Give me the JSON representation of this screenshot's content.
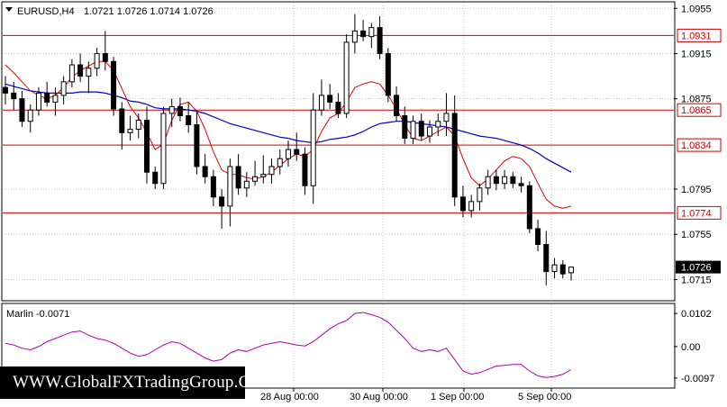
{
  "header": {
    "symbol": "EURUSD,H4",
    "ohlc": "1.0721 1.0726 1.0714 1.0726"
  },
  "indicator": {
    "label": "Marlin -0.0071",
    "ticks": [
      "0.0102",
      "0.00",
      "-0.0097"
    ],
    "line_color": "#b000b0"
  },
  "watermark": "WWW.GlobalFXTradingGroup.Com",
  "colors": {
    "level_line": "#d00000",
    "ma_fast": "#e00000",
    "ma_slow": "#0000cc",
    "grid": "#c8c8c8",
    "current_price_bg": "#000000"
  },
  "chart_data": {
    "type": "candlestick",
    "price_axis": {
      "ticks": [
        "1.0955",
        "1.0915",
        "1.0875",
        "1.0795",
        "1.0755",
        "1.0715"
      ],
      "range": [
        1.0697,
        1.096
      ]
    },
    "time_axis": {
      "labels": [
        "28 Aug 00:00",
        "30 Aug 00:00",
        "1 Sep 00:00",
        "5 Sep 00:00"
      ]
    },
    "levels": [
      {
        "value": 1.0931,
        "label": "1.0931"
      },
      {
        "value": 1.0865,
        "label": "1.0865"
      },
      {
        "value": 1.0834,
        "label": "1.0834"
      },
      {
        "value": 1.0774,
        "label": "1.0774"
      }
    ],
    "current_price": {
      "value": 1.0726,
      "label": "1.0726"
    },
    "candles": [
      [
        1.0885,
        1.0895,
        1.087,
        1.088
      ],
      [
        1.088,
        1.089,
        1.0865,
        1.0875
      ],
      [
        1.0875,
        1.0882,
        1.085,
        1.0855
      ],
      [
        1.0855,
        1.087,
        1.0845,
        1.0865
      ],
      [
        1.0865,
        1.0885,
        1.086,
        1.088
      ],
      [
        1.088,
        1.089,
        1.0868,
        1.0872
      ],
      [
        1.0872,
        1.0885,
        1.086,
        1.0878
      ],
      [
        1.0878,
        1.0895,
        1.087,
        1.089
      ],
      [
        1.089,
        1.091,
        1.0885,
        1.0905
      ],
      [
        1.0905,
        1.0915,
        1.089,
        1.0895
      ],
      [
        1.0895,
        1.0908,
        1.088,
        1.0902
      ],
      [
        1.0902,
        1.092,
        1.0895,
        1.0915
      ],
      [
        1.0915,
        1.0935,
        1.09,
        1.0908
      ],
      [
        1.0908,
        1.0912,
        1.086,
        1.0866
      ],
      [
        1.0866,
        1.0872,
        1.083,
        1.0845
      ],
      [
        1.0845,
        1.086,
        1.0838,
        1.0848
      ],
      [
        1.0848,
        1.0862,
        1.084,
        1.0856
      ],
      [
        1.0856,
        1.0868,
        1.08,
        1.081
      ],
      [
        1.081,
        1.0815,
        1.0795,
        1.08
      ],
      [
        1.08,
        1.0868,
        1.0795,
        1.0862
      ],
      [
        1.0862,
        1.0875,
        1.085,
        1.0868
      ],
      [
        1.0868,
        1.0876,
        1.0855,
        1.086
      ],
      [
        1.086,
        1.0872,
        1.0845,
        1.0852
      ],
      [
        1.0852,
        1.0864,
        1.0808,
        1.0815
      ],
      [
        1.0815,
        1.0826,
        1.08,
        1.0806
      ],
      [
        1.0806,
        1.0812,
        1.078,
        1.0788
      ],
      [
        1.0788,
        1.0795,
        1.076,
        1.078
      ],
      [
        1.078,
        1.0822,
        1.0762,
        1.0815
      ],
      [
        1.0815,
        1.0826,
        1.079,
        1.0796
      ],
      [
        1.0796,
        1.081,
        1.0788,
        1.0802
      ],
      [
        1.0802,
        1.082,
        1.0798,
        1.0806
      ],
      [
        1.0806,
        1.0825,
        1.08,
        1.0808
      ],
      [
        1.0808,
        1.0822,
        1.08,
        1.0815
      ],
      [
        1.0815,
        1.083,
        1.0808,
        1.0822
      ],
      [
        1.0822,
        1.0838,
        1.0815,
        1.083
      ],
      [
        1.083,
        1.0845,
        1.082,
        1.0826
      ],
      [
        1.0826,
        1.0832,
        1.079,
        1.0798
      ],
      [
        1.0798,
        1.088,
        1.0782,
        1.0865
      ],
      [
        1.0865,
        1.0892,
        1.086,
        1.0878
      ],
      [
        1.0878,
        1.0888,
        1.0866,
        1.0872
      ],
      [
        1.0872,
        1.088,
        1.0858,
        1.0862
      ],
      [
        1.0862,
        1.0932,
        1.0858,
        1.0925
      ],
      [
        1.0925,
        1.095,
        1.0915,
        1.0935
      ],
      [
        1.0935,
        1.0945,
        1.0926,
        1.093
      ],
      [
        1.093,
        1.0942,
        1.092,
        1.0938
      ],
      [
        1.0938,
        1.0948,
        1.091,
        1.0915
      ],
      [
        1.0915,
        1.092,
        1.0872,
        1.0878
      ],
      [
        1.0878,
        1.0886,
        1.0855,
        1.086
      ],
      [
        1.086,
        1.0868,
        1.0835,
        1.084
      ],
      [
        1.084,
        1.086,
        1.0835,
        1.0855
      ],
      [
        1.0855,
        1.0862,
        1.0838,
        1.0842
      ],
      [
        1.0842,
        1.0856,
        1.0836,
        1.085
      ],
      [
        1.085,
        1.0862,
        1.0842,
        1.0855
      ],
      [
        1.0855,
        1.088,
        1.0842,
        1.0862
      ],
      [
        1.0862,
        1.0878,
        1.078,
        1.0788
      ],
      [
        1.0788,
        1.0798,
        1.077,
        1.0776
      ],
      [
        1.0776,
        1.079,
        1.077,
        1.0784
      ],
      [
        1.0784,
        1.08,
        1.0776,
        1.0796
      ],
      [
        1.0796,
        1.0812,
        1.079,
        1.0806
      ],
      [
        1.0806,
        1.0812,
        1.0794,
        1.08
      ],
      [
        1.08,
        1.0812,
        1.0795,
        1.0806
      ],
      [
        1.0806,
        1.081,
        1.0796,
        1.08
      ],
      [
        1.08,
        1.0806,
        1.0792,
        1.0798
      ],
      [
        1.0798,
        1.0802,
        1.0756,
        1.076
      ],
      [
        1.076,
        1.0768,
        1.074,
        1.0746
      ],
      [
        1.0746,
        1.0758,
        1.071,
        1.0722
      ],
      [
        1.0722,
        1.0734,
        1.0716,
        1.0728
      ],
      [
        1.0728,
        1.0732,
        1.0716,
        1.072
      ],
      [
        1.0721,
        1.0726,
        1.0714,
        1.0726
      ]
    ],
    "ma_fast": [
      1.0905,
      1.0898,
      1.089,
      1.0882,
      1.0878,
      1.0875,
      1.0878,
      1.0885,
      1.0894,
      1.09,
      1.0904,
      1.0908,
      1.0908,
      1.09,
      1.0884,
      1.0868,
      1.0858,
      1.0845,
      1.083,
      1.0835,
      1.0856,
      1.087,
      1.0872,
      1.0864,
      1.0848,
      1.0828,
      1.0812,
      1.0808,
      1.0808,
      1.0805,
      1.0804,
      1.0806,
      1.081,
      1.0816,
      1.0822,
      1.0826,
      1.0824,
      1.083,
      1.0846,
      1.0858,
      1.0862,
      1.0872,
      1.0885,
      1.0888,
      1.089,
      1.0888,
      1.0878,
      1.0866,
      1.0852,
      1.084,
      1.0838,
      1.0842,
      1.0846,
      1.085,
      1.0842,
      1.0822,
      1.0805,
      1.0798,
      1.0804,
      1.0812,
      1.082,
      1.0824,
      1.0822,
      1.0815,
      1.08,
      1.0786,
      1.078,
      1.0778,
      1.078
    ],
    "ma_slow": [
      1.0888,
      1.0886,
      1.0884,
      1.0882,
      1.0881,
      1.088,
      1.088,
      1.088,
      1.088,
      1.0881,
      1.0881,
      1.0881,
      1.088,
      1.0878,
      1.0876,
      1.0873,
      1.0872,
      1.087,
      1.0867,
      1.0866,
      1.0866,
      1.0866,
      1.0865,
      1.0864,
      1.0862,
      1.0859,
      1.0856,
      1.0853,
      1.0851,
      1.0849,
      1.0847,
      1.0845,
      1.0843,
      1.0841,
      1.084,
      1.0838,
      1.0837,
      1.0836,
      1.0837,
      1.0839,
      1.084,
      1.0841,
      1.0843,
      1.0846,
      1.085,
      1.0853,
      1.0854,
      1.0855,
      1.0855,
      1.0854,
      1.0853,
      1.0852,
      1.0851,
      1.085,
      1.0848,
      1.0846,
      1.0844,
      1.0842,
      1.0841,
      1.084,
      1.0838,
      1.0836,
      1.0834,
      1.0831,
      1.0827,
      1.0822,
      1.0818,
      1.0814,
      1.081
    ],
    "marlin": {
      "range": [
        -0.0125,
        0.013
      ],
      "values": [
        0.001,
        0.0005,
        -0.0005,
        -0.001,
        0.0,
        0.0015,
        0.0025,
        0.0035,
        0.0045,
        0.0048,
        0.0035,
        0.0025,
        0.002,
        0.001,
        -0.0005,
        -0.002,
        -0.003,
        -0.0025,
        -0.001,
        0.0005,
        0.0015,
        0.001,
        -0.0005,
        -0.002,
        -0.0035,
        -0.0045,
        -0.004,
        -0.002,
        -0.001,
        -0.0015,
        -0.0005,
        0.0005,
        0.001,
        0.0015,
        0.001,
        0.0005,
        0.0002,
        0.0015,
        0.0035,
        0.0055,
        0.007,
        0.008,
        0.0102,
        0.0105,
        0.0098,
        0.009,
        0.0075,
        0.005,
        0.0025,
        -0.0005,
        -0.0015,
        -0.001,
        -0.0015,
        -0.0005,
        -0.004,
        -0.0075,
        -0.0085,
        -0.008,
        -0.007,
        -0.006,
        -0.0058,
        -0.0055,
        -0.0055,
        -0.0075,
        -0.009,
        -0.0095,
        -0.0092,
        -0.0085,
        -0.0071
      ]
    }
  }
}
